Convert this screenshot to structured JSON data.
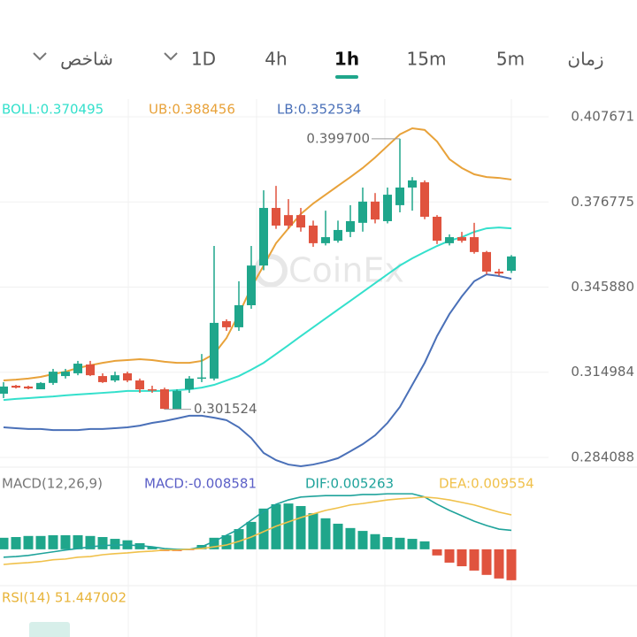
{
  "toolbar": {
    "tabs": [
      "زمان",
      "5m",
      "15m",
      "1h",
      "4h",
      "1D",
      "شاخص"
    ],
    "active": 3,
    "accent": "#1fa68b"
  },
  "watermark": "CoinEx",
  "chart_data": [
    {
      "type": "candlestick",
      "ylim": [
        0.28152,
        0.414091
      ],
      "yticks": [
        0.407671,
        0.376775,
        {
          "value": 0.34588,
          "label": "0.345880"
        },
        0.314984,
        0.284088
      ],
      "up_color": "#1fa68b",
      "down_color": "#e0533e",
      "open": [
        0.3072,
        0.3101,
        0.3098,
        0.3088,
        0.3111,
        0.3136,
        0.3146,
        0.3178,
        0.3136,
        0.312,
        0.3146,
        0.312,
        0.3088,
        0.3088,
        0.3017,
        0.3088,
        0.3127,
        0.3127,
        0.3335,
        0.3313,
        0.3393,
        0.3537,
        0.3746,
        0.372,
        0.372,
        0.3682,
        0.3618,
        0.3627,
        0.3659,
        0.3692,
        0.3769,
        0.3698,
        0.3756,
        0.382,
        0.3839,
        0.3714,
        0.3618,
        0.364,
        0.364,
        0.3586,
        0.3515,
        0.3518
      ],
      "high": [
        0.3114,
        0.3104,
        0.3101,
        0.3114,
        0.3162,
        0.3162,
        0.3191,
        0.3191,
        0.3146,
        0.3152,
        0.3152,
        0.3127,
        0.3101,
        0.3094,
        0.3088,
        0.3136,
        0.3216,
        0.3608,
        0.3342,
        0.348,
        0.3608,
        0.381,
        0.3826,
        0.3778,
        0.3746,
        0.37,
        0.3736,
        0.37,
        0.3756,
        0.382,
        0.38,
        0.382,
        0.3997,
        0.3858,
        0.3846,
        0.372,
        0.365,
        0.3659,
        0.3692,
        0.359,
        0.3525,
        0.3575
      ],
      "low": [
        0.3056,
        0.3091,
        0.3088,
        0.3088,
        0.3104,
        0.3127,
        0.3139,
        0.3136,
        0.3111,
        0.3114,
        0.3114,
        0.3075,
        0.3075,
        0.301524,
        0.302,
        0.3075,
        0.3114,
        0.312,
        0.33,
        0.33,
        0.338,
        0.352,
        0.367,
        0.367,
        0.366,
        0.3605,
        0.361,
        0.362,
        0.364,
        0.366,
        0.369,
        0.369,
        0.373,
        0.3736,
        0.3705,
        0.3615,
        0.361,
        0.362,
        0.358,
        0.3505,
        0.35,
        0.351
      ],
      "close": [
        0.3098,
        0.3094,
        0.3091,
        0.3111,
        0.3152,
        0.3152,
        0.3181,
        0.3139,
        0.3114,
        0.3139,
        0.312,
        0.3088,
        0.3085,
        0.3017,
        0.3082,
        0.3127,
        0.3131,
        0.3329,
        0.3313,
        0.3393,
        0.3537,
        0.3746,
        0.3682,
        0.3682,
        0.3675,
        0.3618,
        0.364,
        0.3666,
        0.3698,
        0.3769,
        0.3704,
        0.3794,
        0.382,
        0.3846,
        0.3714,
        0.3627,
        0.364,
        0.3627,
        0.3586,
        0.3515,
        0.3508,
        0.357
      ],
      "overlays": [
        {
          "label": "BOLL:0.370495",
          "color": "#34e0cc",
          "values": [
            0.3049,
            0.3053,
            0.3056,
            0.3059,
            0.3062,
            0.3066,
            0.3069,
            0.3072,
            0.3075,
            0.3078,
            0.3082,
            0.3082,
            0.3082,
            0.3082,
            0.3085,
            0.3088,
            0.3094,
            0.3104,
            0.312,
            0.3136,
            0.3159,
            0.3184,
            0.3216,
            0.3248,
            0.3281,
            0.3313,
            0.3345,
            0.3377,
            0.3409,
            0.3441,
            0.3473,
            0.3505,
            0.3537,
            0.3563,
            0.3586,
            0.3608,
            0.3627,
            0.364,
            0.3659,
            0.3672,
            0.3675,
            0.3672
          ]
        },
        {
          "label": "UB:0.388456",
          "color": "#e8a23a",
          "values": [
            0.312,
            0.3123,
            0.3127,
            0.3133,
            0.3143,
            0.3152,
            0.3165,
            0.3175,
            0.3184,
            0.3191,
            0.3194,
            0.3197,
            0.3194,
            0.3188,
            0.3184,
            0.3184,
            0.3191,
            0.3216,
            0.3274,
            0.3361,
            0.3457,
            0.3537,
            0.3618,
            0.3672,
            0.3724,
            0.3762,
            0.3794,
            0.3826,
            0.3858,
            0.3891,
            0.3929,
            0.3971,
            0.4013,
            0.4035,
            0.4029,
            0.3987,
            0.3923,
            0.3891,
            0.3868,
            0.3858,
            0.3855,
            0.3849
          ]
        },
        {
          "label": "LB:0.352534",
          "color": "#4a70b8",
          "values": [
            0.295,
            0.2947,
            0.2944,
            0.2944,
            0.294,
            0.294,
            0.294,
            0.2944,
            0.2944,
            0.2947,
            0.295,
            0.2956,
            0.2966,
            0.2973,
            0.2982,
            0.2992,
            0.2992,
            0.2985,
            0.2976,
            0.295,
            0.2911,
            0.2857,
            0.2831,
            0.2815,
            0.2809,
            0.2815,
            0.2825,
            0.2838,
            0.2863,
            0.2889,
            0.2921,
            0.2966,
            0.3024,
            0.3104,
            0.3184,
            0.3281,
            0.3361,
            0.3425,
            0.348,
            0.3505,
            0.3499,
            0.3489
          ]
        }
      ],
      "high_label": {
        "value": 0.3997,
        "label": "0.399700"
      },
      "low_label": {
        "value": 0.301524,
        "label": "0.301524"
      }
    },
    {
      "type": "macd",
      "title": "MACD(12,26,9)",
      "ylim": [
        -0.0096,
        0.0223
      ],
      "up_color": "#1fa68b",
      "down_color": "#e0533e",
      "histogram": {
        "label": "MACD:-0.008581",
        "color": "#5b5fc7",
        "values": [
          0.0032,
          0.0034,
          0.0037,
          0.0037,
          0.0039,
          0.0039,
          0.0039,
          0.0037,
          0.0034,
          0.0029,
          0.0025,
          0.0017,
          0.0007,
          -0.0005,
          -0.0005,
          -0.0002,
          0.0012,
          0.0032,
          0.0039,
          0.0056,
          0.0076,
          0.0113,
          0.0125,
          0.0127,
          0.012,
          0.01,
          0.0086,
          0.0071,
          0.0059,
          0.0051,
          0.0042,
          0.0034,
          0.0032,
          0.0029,
          0.0022,
          -0.0017,
          -0.0037,
          -0.0047,
          -0.0059,
          -0.0071,
          -0.0081,
          -0.008581
        ]
      },
      "series": [
        {
          "label": "DIF:0.005263",
          "color": "#1fa39b",
          "values": [
            -0.0022,
            -0.002,
            -0.0017,
            -0.0012,
            -0.0007,
            -0.0002,
            0.0002,
            0.0007,
            0.001,
            0.0012,
            0.0012,
            0.001,
            0.0007,
            0.0002,
            0,
            0,
            0.0007,
            0.0022,
            0.0039,
            0.0056,
            0.0081,
            0.0105,
            0.0125,
            0.0137,
            0.0145,
            0.0147,
            0.0149,
            0.0149,
            0.0149,
            0.0152,
            0.0152,
            0.0154,
            0.0154,
            0.0154,
            0.0145,
            0.0125,
            0.0108,
            0.0093,
            0.0078,
            0.0066,
            0.0056,
            0.005263
          ]
        },
        {
          "label": "DEA:0.009554",
          "color": "#f0c14b",
          "values": [
            -0.0042,
            -0.0039,
            -0.0037,
            -0.0034,
            -0.0029,
            -0.0027,
            -0.0022,
            -0.002,
            -0.0015,
            -0.0012,
            -0.001,
            -0.0007,
            -0.0005,
            -0.0002,
            -0.0002,
            0,
            0.0002,
            0.0007,
            0.0012,
            0.0022,
            0.0034,
            0.0049,
            0.0064,
            0.0076,
            0.0088,
            0.0098,
            0.0108,
            0.0115,
            0.0123,
            0.0127,
            0.0132,
            0.0137,
            0.014,
            0.0142,
            0.0145,
            0.0142,
            0.0137,
            0.013,
            0.0123,
            0.0113,
            0.0103,
            0.009554
          ]
        }
      ]
    },
    {
      "type": "rsi",
      "label": "RSI(14) 51.447002",
      "color": "#e8b43a"
    }
  ]
}
